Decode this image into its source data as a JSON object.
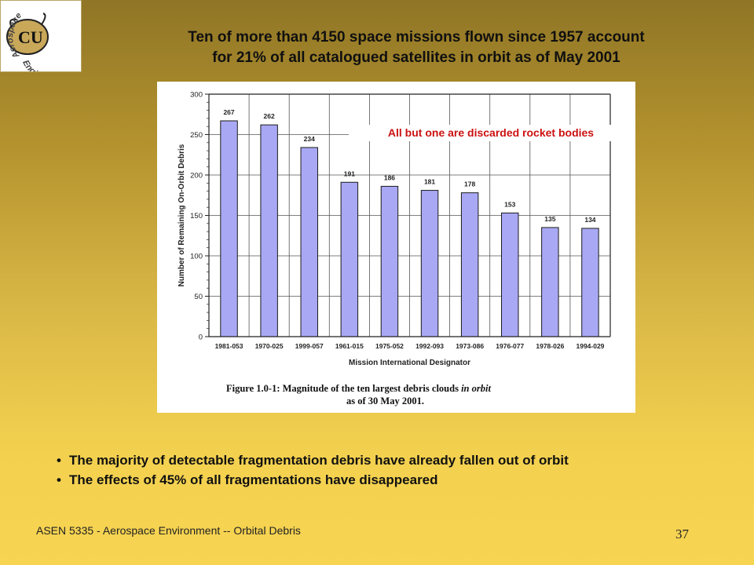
{
  "slide": {
    "title_line1": "Ten of more than 4150 space missions flown since 1957 account",
    "title_line2": "for 21% of all catalogued satellites in orbit as of May 2001",
    "bullets": [
      "The majority of detectable fragmentation debris have already fallen out of orbit",
      "The effects of 45% of all fragmentations have disappeared"
    ],
    "footer": "ASEN 5335 - Aerospace Environment -- Orbital Debris",
    "page_number": "37",
    "logo": {
      "icon": "cu-buffalo-logo",
      "text_top": "Aerospace",
      "text_bottom": "Engineering",
      "monogram": "CU"
    }
  },
  "chart_data": {
    "type": "bar",
    "categories": [
      "1981-053",
      "1970-025",
      "1999-057",
      "1961-015",
      "1975-052",
      "1992-093",
      "1973-086",
      "1976-077",
      "1978-026",
      "1994-029"
    ],
    "values": [
      267,
      262,
      234,
      191,
      186,
      181,
      178,
      153,
      135,
      134
    ],
    "data_labels": [
      "267",
      "262",
      "234",
      "191",
      "186",
      "181",
      "178",
      "153",
      "135",
      "134"
    ],
    "ylabel": "Number of Remaining On-Orbit Debris",
    "xlabel": "Mission International Designator",
    "ylim": [
      0,
      300
    ],
    "yticks": [
      "0",
      "50",
      "100",
      "150",
      "200",
      "250",
      "300"
    ],
    "grid": true,
    "annotation": "All but one are discarded rocket bodies",
    "caption_prefix": "Figure 1.0-1:  Magnitude of the ten largest debris clouds ",
    "caption_italic": "in orbit",
    "caption_line2": "as of 30 May 2001.",
    "colors": {
      "bar": "#a8a8f4",
      "bar_edge": "#1a1a1a",
      "annotation": "#cc1111"
    }
  }
}
